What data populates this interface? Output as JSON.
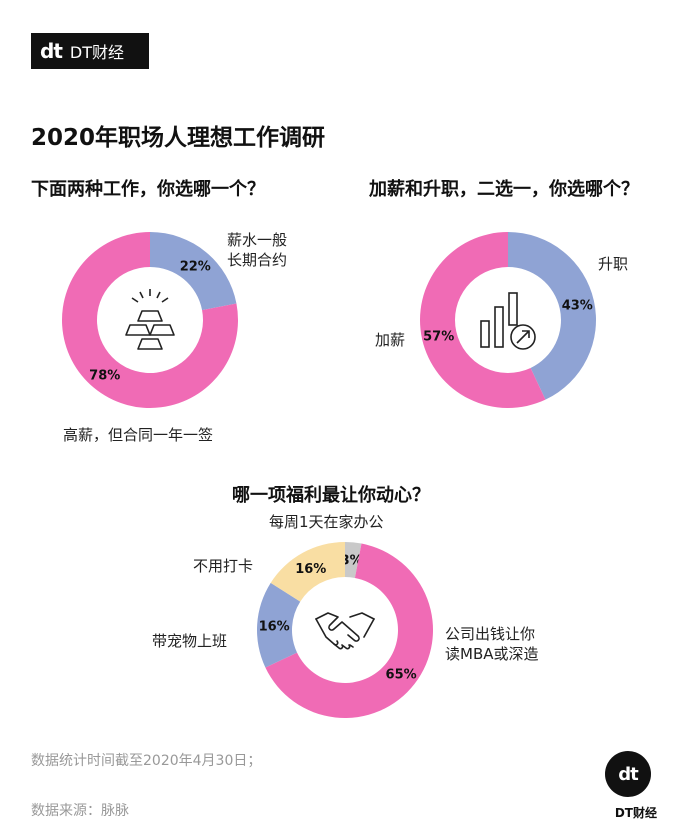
{
  "brand": {
    "mark": "dt",
    "name": "DT财经"
  },
  "title": "2020年职场人理想工作调研",
  "questions": {
    "q1": "下面两种工作，你选哪一个？",
    "q2": "加薪和升职，二选一，你选哪个？",
    "q3": "哪一项福利最让你动心？"
  },
  "labels": {
    "q1_a1": "薪水一般",
    "q1_a2": "长期合约",
    "q1_b": "高薪，但合同一年一签",
    "q2_a": "升职",
    "q2_b": "加薪",
    "q3_a": "每周1天在家办公",
    "q3_b1": "公司出钱让你",
    "q3_b2": "读MBA或深造",
    "q3_c": "带宠物上班",
    "q3_d": "不用打卡"
  },
  "footnotes": {
    "line1": "数据统计时间截至2020年4月30日；",
    "line2": "数据来源：脉脉"
  },
  "colors": {
    "pink": "#f06bb5",
    "blue": "#8fa3d4",
    "yellow": "#f9dea3",
    "gray": "#c9c9c9"
  },
  "icons": [
    "gold-bars-icon",
    "growth-chart-icon",
    "handshake-icon"
  ],
  "chart_data": [
    {
      "type": "pie",
      "title": "下面两种工作，你选哪一个？",
      "slices": [
        {
          "label": "薪水一般长期合约",
          "value": 22,
          "display": "22%",
          "color": "#8fa3d4"
        },
        {
          "label": "高薪，但合同一年一签",
          "value": 78,
          "display": "78%",
          "color": "#f06bb5"
        }
      ]
    },
    {
      "type": "pie",
      "title": "加薪和升职，二选一，你选哪个？",
      "slices": [
        {
          "label": "升职",
          "value": 43,
          "display": "43%",
          "color": "#8fa3d4"
        },
        {
          "label": "加薪",
          "value": 57,
          "display": "57%",
          "color": "#f06bb5"
        }
      ]
    },
    {
      "type": "pie",
      "title": "哪一项福利最让你动心？",
      "slices": [
        {
          "label": "每周1天在家办公",
          "value": 3,
          "display": "3%",
          "color": "#c9c9c9"
        },
        {
          "label": "公司出钱让你读MBA或深造",
          "value": 65,
          "display": "65%",
          "color": "#f06bb5"
        },
        {
          "label": "带宠物上班",
          "value": 16,
          "display": "16%",
          "color": "#8fa3d4"
        },
        {
          "label": "不用打卡",
          "value": 16,
          "display": "16%",
          "color": "#f9dea3"
        }
      ]
    }
  ]
}
